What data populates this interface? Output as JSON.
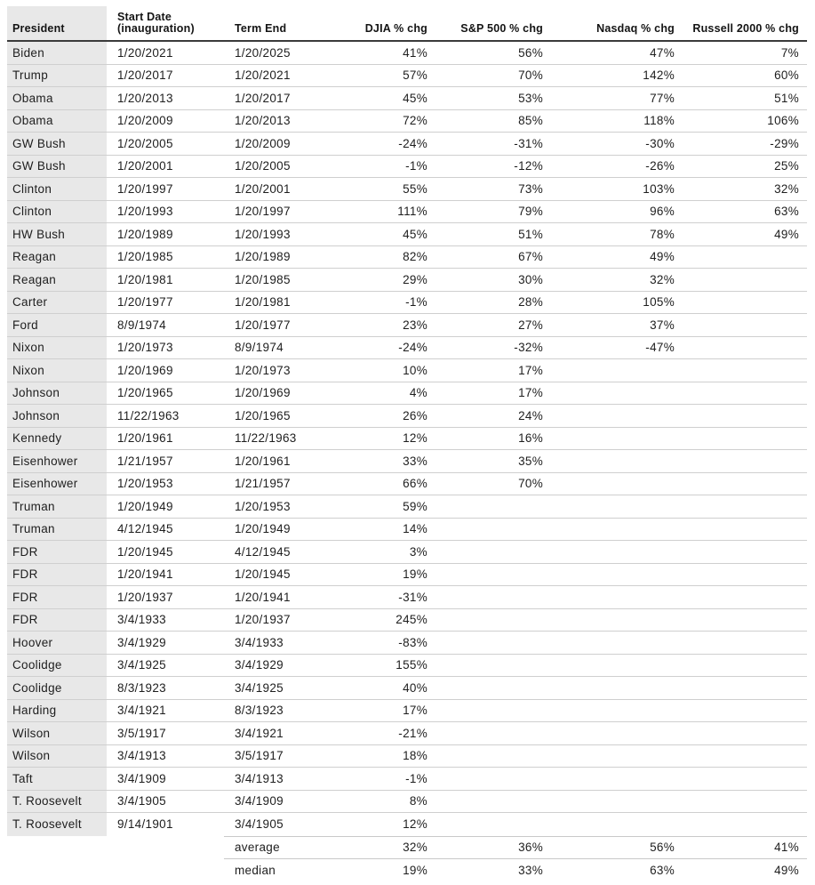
{
  "colors": {
    "president_column_bg": "#e8e8e8",
    "header_rule": "#3b3b3b",
    "row_line": "#cfcfcf",
    "text": "#1e1e1e"
  },
  "chart_data": {
    "type": "table",
    "title": "",
    "columns": [
      "President",
      "Start Date\n(inauguration)",
      "Term End",
      "DJIA % chg",
      "S&P 500 % chg",
      "Nasdaq % chg",
      "Russell 2000 % chg"
    ],
    "rows": [
      [
        "Biden",
        "1/20/2021",
        "1/20/2025",
        "41%",
        "56%",
        "47%",
        "7%"
      ],
      [
        "Trump",
        "1/20/2017",
        "1/20/2021",
        "57%",
        "70%",
        "142%",
        "60%"
      ],
      [
        "Obama",
        "1/20/2013",
        "1/20/2017",
        "45%",
        "53%",
        "77%",
        "51%"
      ],
      [
        "Obama",
        "1/20/2009",
        "1/20/2013",
        "72%",
        "85%",
        "118%",
        "106%"
      ],
      [
        "GW Bush",
        "1/20/2005",
        "1/20/2009",
        "-24%",
        "-31%",
        "-30%",
        "-29%"
      ],
      [
        "GW Bush",
        "1/20/2001",
        "1/20/2005",
        "-1%",
        "-12%",
        "-26%",
        "25%"
      ],
      [
        "Clinton",
        "1/20/1997",
        "1/20/2001",
        "55%",
        "73%",
        "103%",
        "32%"
      ],
      [
        "Clinton",
        "1/20/1993",
        "1/20/1997",
        "111%",
        "79%",
        "96%",
        "63%"
      ],
      [
        "HW Bush",
        "1/20/1989",
        "1/20/1993",
        "45%",
        "51%",
        "78%",
        "49%"
      ],
      [
        "Reagan",
        "1/20/1985",
        "1/20/1989",
        "82%",
        "67%",
        "49%",
        ""
      ],
      [
        "Reagan",
        "1/20/1981",
        "1/20/1985",
        "29%",
        "30%",
        "32%",
        ""
      ],
      [
        "Carter",
        "1/20/1977",
        "1/20/1981",
        "-1%",
        "28%",
        "105%",
        ""
      ],
      [
        "Ford",
        "8/9/1974",
        "1/20/1977",
        "23%",
        "27%",
        "37%",
        ""
      ],
      [
        "Nixon",
        "1/20/1973",
        "8/9/1974",
        "-24%",
        "-32%",
        "-47%",
        ""
      ],
      [
        "Nixon",
        "1/20/1969",
        "1/20/1973",
        "10%",
        "17%",
        "",
        ""
      ],
      [
        "Johnson",
        "1/20/1965",
        "1/20/1969",
        "4%",
        "17%",
        "",
        ""
      ],
      [
        "Johnson",
        "11/22/1963",
        "1/20/1965",
        "26%",
        "24%",
        "",
        ""
      ],
      [
        "Kennedy",
        "1/20/1961",
        "11/22/1963",
        "12%",
        "16%",
        "",
        ""
      ],
      [
        "Eisenhower",
        "1/21/1957",
        "1/20/1961",
        "33%",
        "35%",
        "",
        ""
      ],
      [
        "Eisenhower",
        "1/20/1953",
        "1/21/1957",
        "66%",
        "70%",
        "",
        ""
      ],
      [
        "Truman",
        "1/20/1949",
        "1/20/1953",
        "59%",
        "",
        "",
        ""
      ],
      [
        "Truman",
        "4/12/1945",
        "1/20/1949",
        "14%",
        "",
        "",
        ""
      ],
      [
        "FDR",
        "1/20/1945",
        "4/12/1945",
        "3%",
        "",
        "",
        ""
      ],
      [
        "FDR",
        "1/20/1941",
        "1/20/1945",
        "19%",
        "",
        "",
        ""
      ],
      [
        "FDR",
        "1/20/1937",
        "1/20/1941",
        "-31%",
        "",
        "",
        ""
      ],
      [
        "FDR",
        "3/4/1933",
        "1/20/1937",
        "245%",
        "",
        "",
        ""
      ],
      [
        "Hoover",
        "3/4/1929",
        "3/4/1933",
        "-83%",
        "",
        "",
        ""
      ],
      [
        "Coolidge",
        "3/4/1925",
        "3/4/1929",
        "155%",
        "",
        "",
        ""
      ],
      [
        "Coolidge",
        "8/3/1923",
        "3/4/1925",
        "40%",
        "",
        "",
        ""
      ],
      [
        "Harding",
        "3/4/1921",
        "8/3/1923",
        "17%",
        "",
        "",
        ""
      ],
      [
        "Wilson",
        "3/5/1917",
        "3/4/1921",
        "-21%",
        "",
        "",
        ""
      ],
      [
        "Wilson",
        "3/4/1913",
        "3/5/1917",
        "18%",
        "",
        "",
        ""
      ],
      [
        "Taft",
        "3/4/1909",
        "3/4/1913",
        "-1%",
        "",
        "",
        ""
      ],
      [
        "T. Roosevelt",
        "3/4/1905",
        "3/4/1909",
        "8%",
        "",
        "",
        ""
      ],
      [
        "T. Roosevelt",
        "9/14/1901",
        "3/4/1905",
        "12%",
        "",
        "",
        ""
      ]
    ],
    "summary_rows": [
      [
        "",
        "",
        "average",
        "32%",
        "36%",
        "56%",
        "41%"
      ],
      [
        "",
        "",
        "median",
        "19%",
        "33%",
        "63%",
        "49%"
      ]
    ]
  }
}
